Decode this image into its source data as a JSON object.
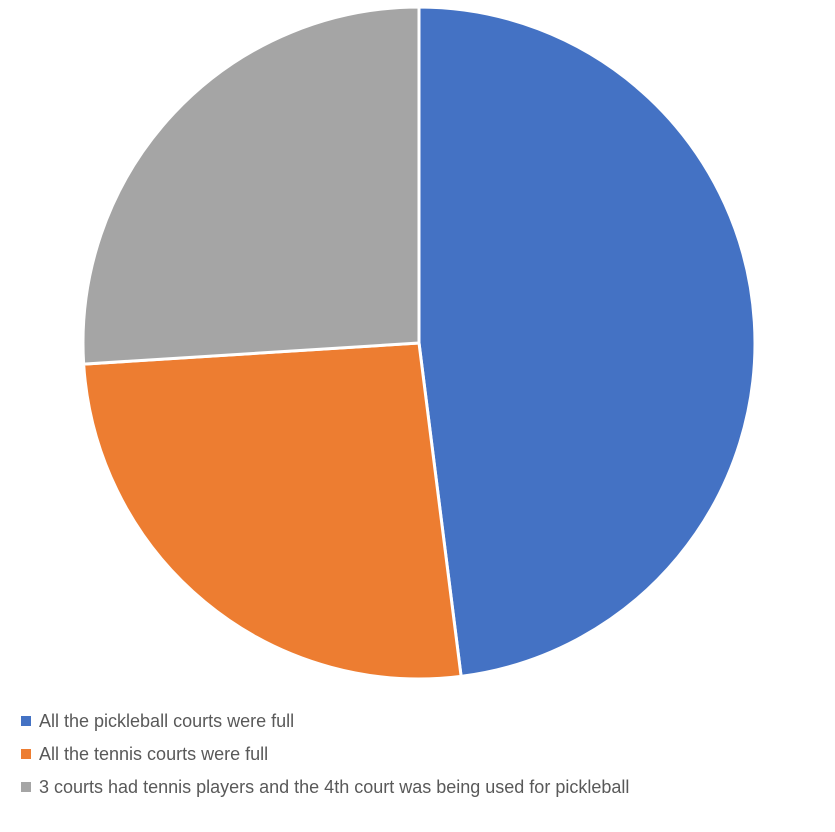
{
  "chart_data": {
    "type": "pie",
    "title": "",
    "start_angle_deg": 0,
    "direction": "clockwise",
    "border_color": "#ffffff",
    "legend_position": "bottom-left",
    "slices": [
      {
        "label": "All the pickleball courts were full",
        "value": 48,
        "color": "#4472C4"
      },
      {
        "label": "All the tennis courts were full",
        "value": 26,
        "color": "#ED7D31"
      },
      {
        "label": "3 courts had tennis players and the 4th court was being used for pickleball",
        "value": 26,
        "color": "#A5A5A5"
      }
    ]
  }
}
